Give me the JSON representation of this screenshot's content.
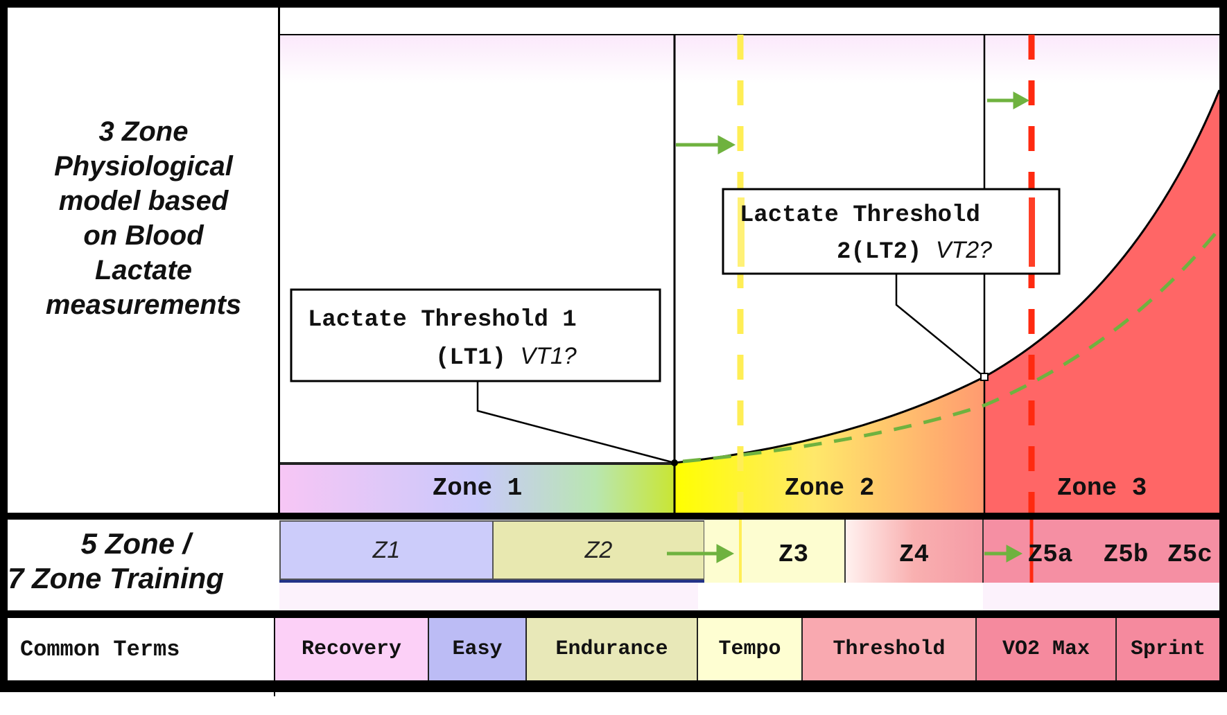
{
  "three_zone": {
    "label": "3 Zone Physiological model based on Blood Lactate measurements",
    "label_lines": [
      "3 Zone",
      "Physiological",
      "model based",
      "on Blood",
      "Lactate",
      "measurements"
    ],
    "zones": [
      "Zone 1",
      "Zone 2",
      "Zone 3"
    ],
    "lt1": {
      "line1": "Lactate Threshold 1",
      "line2": "(LT1)",
      "line2_italic": "VT1?"
    },
    "lt2": {
      "line1": "Lactate Threshold",
      "line2": "2(LT2)",
      "line2_italic": "VT2?"
    }
  },
  "five_zone": {
    "label_lines": [
      "5 Zone /",
      "7 Zone Training"
    ],
    "zones": [
      "Z1",
      "Z2",
      "Z3",
      "Z4",
      "Z5a",
      "Z5b",
      "Z5c"
    ]
  },
  "common_terms": {
    "label": "Common Terms",
    "terms": [
      "Recovery",
      "Easy",
      "Endurance",
      "Tempo",
      "Threshold",
      "VO2 Max",
      "Sprint"
    ]
  },
  "colors": {
    "zone3_red": "#ff6666",
    "threshold_yellow": "#ffee55",
    "threshold_red": "#ff2a10",
    "arrow_green": "#6fb23f"
  }
}
